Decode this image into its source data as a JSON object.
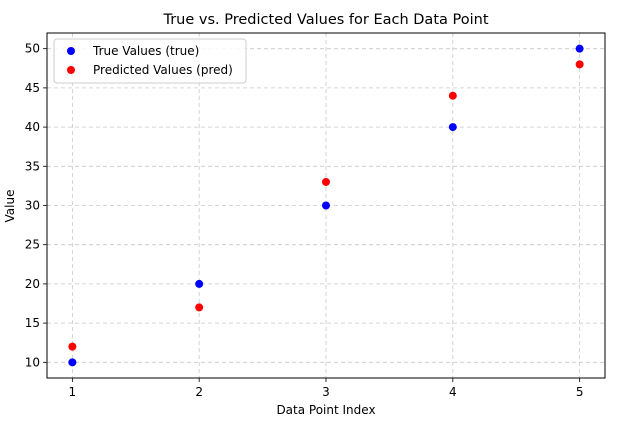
{
  "chart_data": {
    "type": "scatter",
    "title": "True vs. Predicted Values for Each Data Point",
    "xlabel": "Data Point Index",
    "ylabel": "Value",
    "x": [
      1,
      2,
      3,
      4,
      5
    ],
    "xticks": [
      1,
      2,
      3,
      4,
      5
    ],
    "yticks": [
      10,
      15,
      20,
      25,
      30,
      35,
      40,
      45,
      50
    ],
    "xlim": [
      0.8,
      5.2
    ],
    "ylim": [
      8.0,
      52.0
    ],
    "grid": true,
    "grid_style": "dashed",
    "legend_position": "top-left",
    "series": [
      {
        "name": "True Values (true)",
        "color": "#0000ff",
        "values": [
          10,
          20,
          30,
          40,
          50
        ]
      },
      {
        "name": "Predicted Values (pred)",
        "color": "#ff0000",
        "values": [
          12,
          17,
          33,
          44,
          48
        ]
      }
    ]
  }
}
